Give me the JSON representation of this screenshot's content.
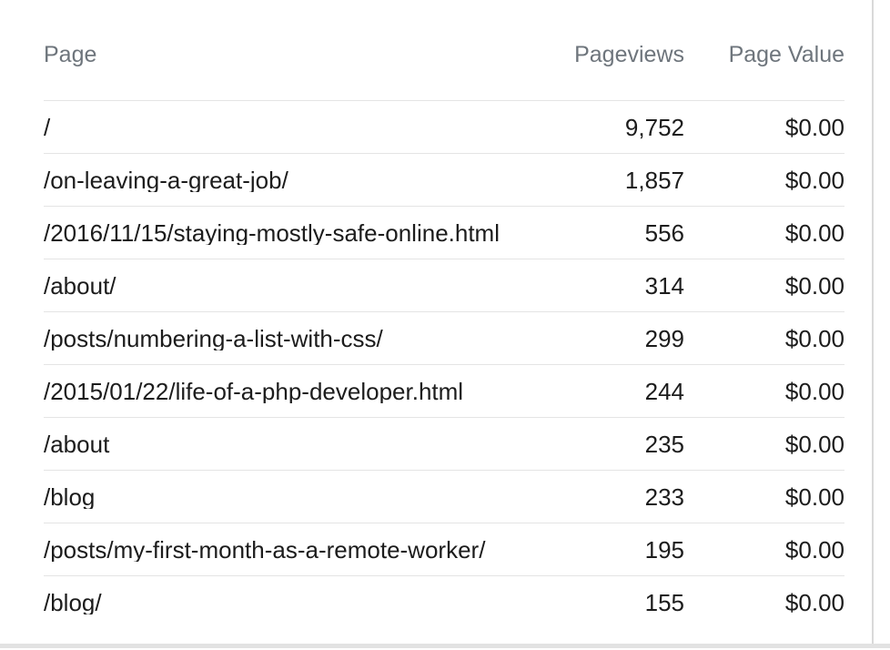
{
  "table": {
    "columns": [
      {
        "label": "Page",
        "align": "left"
      },
      {
        "label": "Pageviews",
        "align": "right"
      },
      {
        "label": "Page Value",
        "align": "right"
      }
    ],
    "rows": [
      {
        "page": "/",
        "pageviews": "9,752",
        "page_value": "$0.00"
      },
      {
        "page": "/on-leaving-a-great-job/",
        "pageviews": "1,857",
        "page_value": "$0.00"
      },
      {
        "page": "/2016/11/15/staying-mostly-safe-online.html",
        "pageviews": "556",
        "page_value": "$0.00"
      },
      {
        "page": "/about/",
        "pageviews": "314",
        "page_value": "$0.00"
      },
      {
        "page": "/posts/numbering-a-list-with-css/",
        "pageviews": "299",
        "page_value": "$0.00"
      },
      {
        "page": "/2015/01/22/life-of-a-php-developer.html",
        "pageviews": "244",
        "page_value": "$0.00"
      },
      {
        "page": "/about",
        "pageviews": "235",
        "page_value": "$0.00"
      },
      {
        "page": "/blog",
        "pageviews": "233",
        "page_value": "$0.00"
      },
      {
        "page": "/posts/my-first-month-as-a-remote-worker/",
        "pageviews": "195",
        "page_value": "$0.00"
      },
      {
        "page": "/blog/",
        "pageviews": "155",
        "page_value": "$0.00"
      }
    ]
  },
  "colors": {
    "background": "#ffffff",
    "header_text": "#6e757c",
    "body_text": "#1c1c1c",
    "divider": "#e4e4e4",
    "card_border": "#d9d9d9",
    "bottom_edge": "#e2e2e2"
  }
}
